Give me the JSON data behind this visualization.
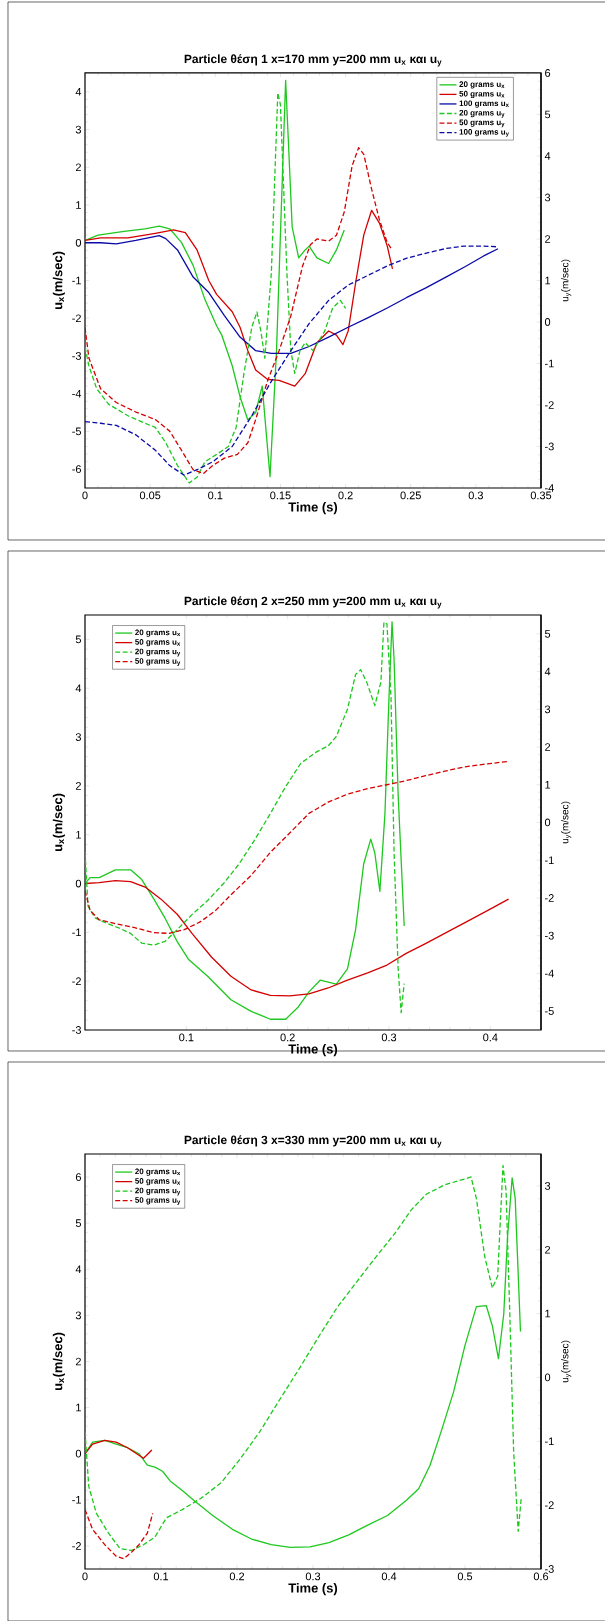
{
  "chart_data": [
    {
      "type": "line",
      "title": "Particle θέση 1 x=170 mm y=200 mm u$_{x}$ και u$_{y}$",
      "xlabel": "Time (s)",
      "ylabel": "u$_{x}$(m/sec)",
      "y2label": "u$_{y}$(m/sec)",
      "xlim": [
        0,
        0.35
      ],
      "xticks": [
        0,
        0.05,
        0.1,
        0.15,
        0.2,
        0.25,
        0.3,
        0.35
      ],
      "ylim": [
        -6.5,
        4.5
      ],
      "yticks": [
        -6,
        -5,
        -4,
        -3,
        -2,
        -1,
        0,
        1,
        2,
        3,
        4
      ],
      "y2lim": [
        -4,
        6
      ],
      "y2ticks": [
        -4,
        -3,
        -2,
        -1,
        0,
        1,
        2,
        3,
        4,
        5,
        6
      ],
      "legend": "top right",
      "series": [
        {
          "name": "20 grams u$_{x}$",
          "color": "#1ec81e",
          "line_style": "solid",
          "x": [
            0,
            0.01,
            0.03,
            0.046,
            0.057,
            0.065,
            0.074,
            0.083,
            0.092,
            0.101,
            0.105,
            0.113,
            0.119,
            0.125,
            0.131,
            0.136,
            0.142,
            0.147,
            0.152,
            0.154,
            0.156,
            0.159,
            0.164,
            0.169,
            0.172,
            0.178,
            0.187,
            0.193,
            0.199
          ],
          "values": [
            0.06,
            0.2,
            0.3,
            0.37,
            0.44,
            0.37,
            0.01,
            -0.6,
            -1.5,
            -2.2,
            -2.45,
            -3.26,
            -4.08,
            -4.7,
            -4.5,
            -3.8,
            -6.2,
            -2.86,
            2.26,
            4.3,
            2.77,
            0.42,
            -0.4,
            -0.19,
            -0.09,
            -0.4,
            -0.55,
            -0.19,
            0.34
          ]
        },
        {
          "name": "50 grams u$_{x}$",
          "color": "#d40000",
          "line_style": "solid",
          "x": [
            0,
            0.012,
            0.033,
            0.054,
            0.068,
            0.077,
            0.086,
            0.095,
            0.101,
            0.113,
            0.119,
            0.125,
            0.131,
            0.14,
            0.149,
            0.161,
            0.169,
            0.178,
            0.187,
            0.193,
            0.198,
            0.202,
            0.208,
            0.214,
            0.22,
            0.226,
            0.232,
            0.236
          ],
          "values": [
            0.06,
            0.13,
            0.13,
            0.25,
            0.34,
            0.27,
            -0.19,
            -1.0,
            -1.37,
            -1.83,
            -2.24,
            -2.86,
            -3.37,
            -3.62,
            -3.65,
            -3.8,
            -3.47,
            -2.65,
            -2.34,
            -2.45,
            -2.7,
            -2.34,
            -1.0,
            0.21,
            0.86,
            0.52,
            -0.09,
            -0.69
          ]
        },
        {
          "name": "100 grams u$_{x}$",
          "color": "#0a0aa8",
          "line_style": "solid",
          "x": [
            0,
            0.012,
            0.024,
            0.039,
            0.057,
            0.062,
            0.071,
            0.083,
            0.095,
            0.107,
            0.119,
            0.131,
            0.143,
            0.158,
            0.172,
            0.187,
            0.202,
            0.217,
            0.232,
            0.247,
            0.262,
            0.277,
            0.292,
            0.306,
            0.317
          ],
          "values": [
            0,
            0,
            -0.03,
            0.06,
            0.19,
            0.11,
            -0.19,
            -0.91,
            -1.32,
            -1.93,
            -2.5,
            -2.86,
            -2.93,
            -2.93,
            -2.75,
            -2.5,
            -2.24,
            -1.99,
            -1.73,
            -1.45,
            -1.19,
            -0.91,
            -0.63,
            -0.35,
            -0.16
          ]
        },
        {
          "name": "20 grams u$_{y}$",
          "color": "#1ec81e",
          "line_style": "dashed",
          "axis": "y2",
          "x": [
            0,
            0.003,
            0.009,
            0.018,
            0.033,
            0.046,
            0.054,
            0.062,
            0.071,
            0.08,
            0.086,
            0.092,
            0.101,
            0.11,
            0.116,
            0.122,
            0.128,
            0.132,
            0.135,
            0.138,
            0.143,
            0.148,
            0.15,
            0.155,
            0.158,
            0.161,
            0.165,
            0.169,
            0.175,
            0.184,
            0.19,
            0.196,
            0.2
          ],
          "values": [
            -0.6,
            -1.06,
            -1.61,
            -1.98,
            -2.26,
            -2.44,
            -2.54,
            -2.91,
            -3.46,
            -3.88,
            -3.74,
            -3.37,
            -3.19,
            -3.0,
            -2.54,
            -1.24,
            -0.13,
            0.24,
            -0.22,
            -0.87,
            1.17,
            5.52,
            5.24,
            1.17,
            -0.69,
            -1.24,
            -0.69,
            -0.5,
            -0.69,
            -0.22,
            0.33,
            0.52,
            0.33
          ]
        },
        {
          "name": "50 grams u$_{y}$",
          "color": "#d40000",
          "line_style": "dashed",
          "axis": "y2",
          "x": [
            0,
            0.003,
            0.012,
            0.024,
            0.039,
            0.054,
            0.065,
            0.074,
            0.083,
            0.091,
            0.098,
            0.107,
            0.117,
            0.125,
            0.131,
            0.14,
            0.149,
            0.158,
            0.167,
            0.173,
            0.178,
            0.187,
            0.193,
            0.199,
            0.205,
            0.21,
            0.214,
            0.22,
            0.226,
            0.232,
            0.235
          ],
          "values": [
            -0.13,
            -0.87,
            -1.61,
            -1.94,
            -2.17,
            -2.35,
            -2.63,
            -3.09,
            -3.56,
            -3.65,
            -3.46,
            -3.28,
            -3.19,
            -2.91,
            -2.35,
            -1.43,
            -0.69,
            0.15,
            1.35,
            1.86,
            2.0,
            1.95,
            2.09,
            2.65,
            3.76,
            4.2,
            4.04,
            3.2,
            2.46,
            1.91,
            1.77
          ]
        },
        {
          "name": "100 grams u$_{y}$",
          "color": "#0a0aa8",
          "line_style": "dashed",
          "axis": "y2",
          "x": [
            0,
            0.012,
            0.024,
            0.039,
            0.054,
            0.065,
            0.076,
            0.086,
            0.098,
            0.113,
            0.128,
            0.143,
            0.158,
            0.172,
            0.187,
            0.202,
            0.217,
            0.232,
            0.247,
            0.262,
            0.277,
            0.291,
            0.306,
            0.317
          ],
          "values": [
            -2.4,
            -2.44,
            -2.49,
            -2.72,
            -3.09,
            -3.46,
            -3.69,
            -3.56,
            -3.37,
            -3.0,
            -2.26,
            -1.43,
            -0.69,
            -0.04,
            0.52,
            0.89,
            1.12,
            1.35,
            1.54,
            1.66,
            1.77,
            1.83,
            1.83,
            1.81
          ]
        }
      ]
    },
    {
      "type": "line",
      "title": "Particle θέση 2 x=250 mm y=200 mm u$_{x}$ και u$_{y}$",
      "xlabel": "Time (s)",
      "ylabel": "u$_{x}$(m/sec)",
      "y2label": "u$_{y}$(m/sec)",
      "xlim": [
        0,
        0.45
      ],
      "xticks": [
        0.1,
        0.2,
        0.3,
        0.4
      ],
      "ylim": [
        -3,
        5.5
      ],
      "yticks": [
        -3,
        -2,
        -1,
        0,
        1,
        2,
        3,
        4,
        5
      ],
      "y2lim": [
        -5.5,
        5.5
      ],
      "y2ticks": [
        -5,
        -4,
        -3,
        -2,
        -1,
        0,
        1,
        2,
        3,
        4,
        5
      ],
      "legend": "top left",
      "series": [
        {
          "name": "20 grams u$_{x}$",
          "color": "#1ec81e",
          "line_style": "solid",
          "x": [
            0,
            0.005,
            0.014,
            0.03,
            0.045,
            0.056,
            0.068,
            0.079,
            0.091,
            0.102,
            0.121,
            0.144,
            0.164,
            0.183,
            0.198,
            0.21,
            0.221,
            0.232,
            0.248,
            0.259,
            0.267,
            0.275,
            0.282,
            0.286,
            0.291,
            0.296,
            0.3,
            0.303,
            0.305,
            0.309,
            0.315
          ],
          "values": [
            0,
            0.12,
            0.12,
            0.28,
            0.28,
            0.08,
            -0.32,
            -0.71,
            -1.19,
            -1.55,
            -1.9,
            -2.38,
            -2.62,
            -2.78,
            -2.78,
            -2.54,
            -2.22,
            -1.98,
            -2.06,
            -1.75,
            -0.95,
            0.4,
            0.91,
            0.63,
            -0.16,
            1.43,
            3.81,
            5.36,
            4.6,
            1.83,
            -0.87
          ]
        },
        {
          "name": "50 grams u$_{x}$",
          "color": "#d40000",
          "line_style": "solid",
          "x": [
            0,
            0.014,
            0.03,
            0.045,
            0.06,
            0.075,
            0.091,
            0.106,
            0.125,
            0.144,
            0.164,
            0.183,
            0.202,
            0.221,
            0.24,
            0.259,
            0.279,
            0.298,
            0.317,
            0.336,
            0.355,
            0.374,
            0.393,
            0.418
          ],
          "values": [
            0,
            0.02,
            0.06,
            0.04,
            -0.08,
            -0.32,
            -0.63,
            -1.03,
            -1.51,
            -1.9,
            -2.18,
            -2.29,
            -2.3,
            -2.26,
            -2.14,
            -1.98,
            -1.83,
            -1.67,
            -1.43,
            -1.23,
            -1.02,
            -0.81,
            -0.6,
            -0.32
          ]
        },
        {
          "name": "20 grams u$_{y}$",
          "color": "#1ec81e",
          "line_style": "dashed",
          "axis": "y2",
          "x": [
            0,
            0.003,
            0.01,
            0.022,
            0.033,
            0.045,
            0.056,
            0.068,
            0.079,
            0.091,
            0.106,
            0.121,
            0.137,
            0.152,
            0.167,
            0.183,
            0.198,
            0.213,
            0.229,
            0.24,
            0.248,
            0.259,
            0.267,
            0.272,
            0.278,
            0.286,
            0.292,
            0.295,
            0.298,
            0.302,
            0.305,
            0.309,
            0.312,
            0.315
          ],
          "values": [
            -0.79,
            -2.22,
            -2.53,
            -2.68,
            -2.79,
            -2.94,
            -3.2,
            -3.25,
            -3.15,
            -2.84,
            -2.43,
            -2.07,
            -1.61,
            -1.1,
            -0.48,
            0.24,
            0.95,
            1.57,
            1.88,
            2.03,
            2.28,
            3.0,
            3.92,
            4.05,
            3.72,
            3.1,
            3.72,
            5.31,
            5.26,
            3.31,
            -0.79,
            -3.86,
            -5.04,
            -4.27
          ]
        },
        {
          "name": "50 grams u$_{y}$",
          "color": "#d40000",
          "line_style": "dashed",
          "axis": "y2",
          "x": [
            0,
            0.005,
            0.014,
            0.03,
            0.049,
            0.068,
            0.083,
            0.098,
            0.114,
            0.129,
            0.144,
            0.164,
            0.183,
            0.202,
            0.221,
            0.24,
            0.259,
            0.279,
            0.298,
            0.317,
            0.336,
            0.355,
            0.374,
            0.393,
            0.418
          ],
          "values": [
            -1.81,
            -2.33,
            -2.58,
            -2.68,
            -2.79,
            -2.92,
            -2.94,
            -2.84,
            -2.63,
            -2.33,
            -1.92,
            -1.4,
            -0.79,
            -0.28,
            0.24,
            0.54,
            0.75,
            0.9,
            1.0,
            1.11,
            1.24,
            1.36,
            1.47,
            1.54,
            1.62
          ]
        }
      ]
    },
    {
      "type": "line",
      "title": "Particle θέση 3 x=330 mm y=200 mm u$_{x}$ και u$_{y}$",
      "xlabel": "Time (s)",
      "ylabel": "u$_{x}$(m/sec)",
      "y2label": "u$_{y}$(m/sec)",
      "xlim": [
        0,
        0.6
      ],
      "xticks": [
        0,
        0.1,
        0.2,
        0.3,
        0.4,
        0.5,
        0.6
      ],
      "ylim": [
        -2.5,
        6.5
      ],
      "yticks": [
        -2,
        -1,
        0,
        1,
        2,
        3,
        4,
        5,
        6
      ],
      "y2lim": [
        -3,
        3.5
      ],
      "y2ticks": [
        -3,
        -2,
        -1,
        0,
        1,
        2,
        3
      ],
      "legend": "top left",
      "series": [
        {
          "name": "20 grams u$_{x}$",
          "color": "#1ec81e",
          "line_style": "solid",
          "x": [
            0,
            0.01,
            0.026,
            0.041,
            0.056,
            0.071,
            0.082,
            0.092,
            0.102,
            0.112,
            0.128,
            0.143,
            0.168,
            0.194,
            0.219,
            0.245,
            0.27,
            0.296,
            0.321,
            0.347,
            0.372,
            0.398,
            0.423,
            0.439,
            0.454,
            0.469,
            0.485,
            0.5,
            0.515,
            0.528,
            0.536,
            0.544,
            0.551,
            0.556,
            0.562,
            0.566,
            0.573
          ],
          "values": [
            0,
            0.25,
            0.29,
            0.21,
            0.13,
            0,
            -0.25,
            -0.29,
            -0.38,
            -0.59,
            -0.8,
            -1.01,
            -1.34,
            -1.64,
            -1.85,
            -1.97,
            -2.03,
            -2.02,
            -1.93,
            -1.76,
            -1.55,
            -1.34,
            -1.01,
            -0.76,
            -0.25,
            0.5,
            1.34,
            2.35,
            3.19,
            3.21,
            2.77,
            2.06,
            3.03,
            4.71,
            5.98,
            5.55,
            2.65
          ]
        },
        {
          "name": "50 grams u$_{x}$",
          "color": "#d40000",
          "line_style": "solid",
          "x": [
            0,
            0.01,
            0.026,
            0.041,
            0.056,
            0.077,
            0.088
          ],
          "values": [
            0,
            0.21,
            0.29,
            0.25,
            0.13,
            -0.1,
            0.08
          ]
        },
        {
          "name": "20 grams u$_{y}$",
          "color": "#1ec81e",
          "line_style": "dashed",
          "axis": "y2",
          "x": [
            0,
            0.005,
            0.015,
            0.031,
            0.046,
            0.061,
            0.077,
            0.092,
            0.107,
            0.128,
            0.153,
            0.179,
            0.204,
            0.23,
            0.255,
            0.281,
            0.306,
            0.332,
            0.357,
            0.383,
            0.408,
            0.429,
            0.449,
            0.474,
            0.5,
            0.508,
            0.515,
            0.526,
            0.536,
            0.543,
            0.55,
            0.554,
            0.559,
            0.564,
            0.57,
            0.574
          ],
          "values": [
            -0.85,
            -1.71,
            -2.13,
            -2.44,
            -2.68,
            -2.71,
            -2.62,
            -2.5,
            -2.2,
            -2.07,
            -1.89,
            -1.65,
            -1.28,
            -0.85,
            -0.37,
            0.12,
            0.61,
            1.1,
            1.49,
            1.89,
            2.26,
            2.62,
            2.87,
            3.02,
            3.11,
            3.14,
            2.8,
            1.89,
            1.4,
            1.59,
            3.32,
            2.93,
            0.98,
            -1.16,
            -2.41,
            -1.89
          ]
        },
        {
          "name": "50 grams u$_{y}$",
          "color": "#d40000",
          "line_style": "dashed",
          "axis": "y2",
          "x": [
            0,
            0.01,
            0.026,
            0.041,
            0.051,
            0.061,
            0.071,
            0.082,
            0.089
          ],
          "values": [
            -2.07,
            -2.38,
            -2.62,
            -2.8,
            -2.84,
            -2.74,
            -2.62,
            -2.44,
            -2.13
          ]
        }
      ]
    }
  ]
}
